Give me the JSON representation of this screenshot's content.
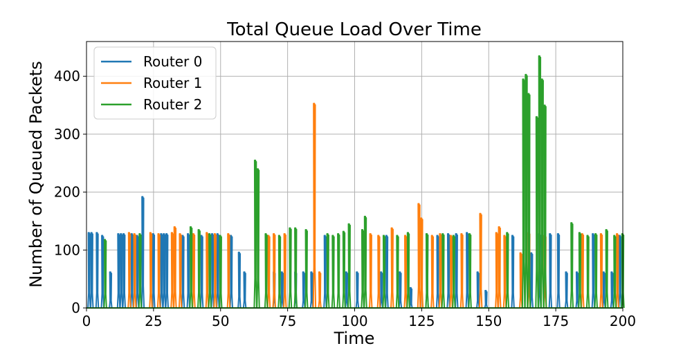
{
  "chart_data": {
    "type": "line",
    "title": "Total Queue Load Over Time",
    "xlabel": "Time",
    "ylabel": "Number of Queued Packets",
    "xlim": [
      0,
      200
    ],
    "ylim": [
      0,
      460
    ],
    "xticks": [
      0,
      25,
      50,
      75,
      100,
      125,
      150,
      175,
      200
    ],
    "yticks": [
      0,
      100,
      200,
      300,
      400
    ],
    "grid": true,
    "legend_position": "top-left",
    "series": [
      {
        "name": "Router 0",
        "color": "#1f77b4",
        "bursts": [
          [
            1,
            130
          ],
          [
            2,
            130
          ],
          [
            4,
            130
          ],
          [
            6,
            125
          ],
          [
            9,
            62
          ],
          [
            12,
            128
          ],
          [
            13,
            128
          ],
          [
            14,
            128
          ],
          [
            17,
            128
          ],
          [
            19,
            125
          ],
          [
            21,
            192
          ],
          [
            25,
            128
          ],
          [
            28,
            128
          ],
          [
            29,
            128
          ],
          [
            30,
            128
          ],
          [
            36,
            125
          ],
          [
            38,
            128
          ],
          [
            43,
            125
          ],
          [
            47,
            128
          ],
          [
            49,
            128
          ],
          [
            54,
            125
          ],
          [
            57,
            96
          ],
          [
            59,
            62
          ],
          [
            70,
            62
          ],
          [
            73,
            62
          ],
          [
            78,
            62
          ],
          [
            81,
            62
          ],
          [
            84,
            62
          ],
          [
            89,
            125
          ],
          [
            97,
            62
          ],
          [
            101,
            62
          ],
          [
            110,
            62
          ],
          [
            112,
            125
          ],
          [
            117,
            62
          ],
          [
            121,
            35
          ],
          [
            127,
            128
          ],
          [
            131,
            125
          ],
          [
            135,
            128
          ],
          [
            138,
            128
          ],
          [
            142,
            130
          ],
          [
            146,
            62
          ],
          [
            149,
            30
          ],
          [
            159,
            125
          ],
          [
            166,
            95
          ],
          [
            169,
            128
          ],
          [
            173,
            128
          ],
          [
            176,
            128
          ],
          [
            179,
            62
          ],
          [
            183,
            62
          ],
          [
            189,
            128
          ],
          [
            193,
            62
          ],
          [
            196,
            62
          ],
          [
            199,
            125
          ]
        ]
      },
      {
        "name": "Router 1",
        "color": "#ff7f0e",
        "bursts": [
          [
            16,
            130
          ],
          [
            18,
            128
          ],
          [
            24,
            130
          ],
          [
            27,
            128
          ],
          [
            32,
            130
          ],
          [
            33,
            140
          ],
          [
            35,
            128
          ],
          [
            40,
            128
          ],
          [
            45,
            130
          ],
          [
            48,
            128
          ],
          [
            53,
            128
          ],
          [
            68,
            125
          ],
          [
            70,
            128
          ],
          [
            74,
            128
          ],
          [
            85,
            353
          ],
          [
            87,
            62
          ],
          [
            106,
            128
          ],
          [
            109,
            125
          ],
          [
            114,
            138
          ],
          [
            119,
            125
          ],
          [
            124,
            180
          ],
          [
            125,
            155
          ],
          [
            129,
            125
          ],
          [
            132,
            128
          ],
          [
            136,
            125
          ],
          [
            140,
            128
          ],
          [
            147,
            163
          ],
          [
            153,
            130
          ],
          [
            154,
            140
          ],
          [
            156,
            125
          ],
          [
            162,
            95
          ],
          [
            165,
            130
          ],
          [
            171,
            125
          ],
          [
            185,
            128
          ],
          [
            192,
            128
          ],
          [
            198,
            128
          ]
        ]
      },
      {
        "name": "Router 2",
        "color": "#2ca02c",
        "bursts": [
          [
            7,
            118
          ],
          [
            20,
            128
          ],
          [
            39,
            140
          ],
          [
            42,
            135
          ],
          [
            46,
            128
          ],
          [
            50,
            125
          ],
          [
            63,
            255
          ],
          [
            64,
            240
          ],
          [
            67,
            128
          ],
          [
            72,
            125
          ],
          [
            76,
            138
          ],
          [
            78,
            138
          ],
          [
            82,
            135
          ],
          [
            90,
            128
          ],
          [
            92,
            125
          ],
          [
            94,
            128
          ],
          [
            96,
            132
          ],
          [
            98,
            145
          ],
          [
            103,
            135
          ],
          [
            104,
            158
          ],
          [
            111,
            125
          ],
          [
            116,
            125
          ],
          [
            120,
            130
          ],
          [
            127,
            128
          ],
          [
            133,
            128
          ],
          [
            137,
            125
          ],
          [
            143,
            128
          ],
          [
            157,
            130
          ],
          [
            163,
            395
          ],
          [
            164,
            403
          ],
          [
            165,
            370
          ],
          [
            168,
            330
          ],
          [
            169,
            435
          ],
          [
            170,
            395
          ],
          [
            171,
            350
          ],
          [
            181,
            147
          ],
          [
            184,
            130
          ],
          [
            187,
            125
          ],
          [
            190,
            128
          ],
          [
            194,
            135
          ],
          [
            197,
            125
          ],
          [
            200,
            128
          ]
        ]
      }
    ]
  }
}
